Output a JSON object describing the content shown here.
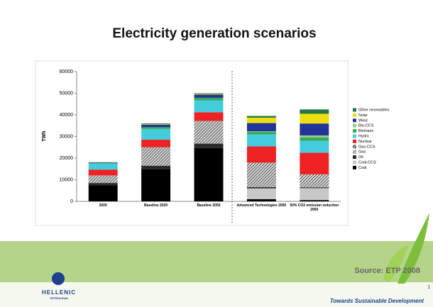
{
  "chart_data": {
    "type": "stacked_bar",
    "title": "Electricity generation scenarios",
    "y_label": "TWh",
    "categories": [
      "2005",
      "Baseline 2030",
      "Baseline 2050",
      "Advanced Technologies 2050",
      "50% CO2 emission reduction 2050"
    ],
    "series": [
      {
        "name": "Coal",
        "color": "#000000",
        "values": [
          7500,
          15000,
          24700,
          1000,
          600
        ]
      },
      {
        "name": "Coal-CCS",
        "color": "#c8c8c8",
        "values": [
          0,
          0,
          0,
          5000,
          5500
        ]
      },
      {
        "name": "Oil",
        "color": "#2a2a2a",
        "values": [
          1000,
          1500,
          2000,
          600,
          400
        ]
      },
      {
        "name": "Gas",
        "color": "#9a9a9a",
        "hatch": true,
        "values": [
          3500,
          8500,
          10500,
          9800,
          2500
        ]
      },
      {
        "name": "Gas-CCS",
        "color": "#333333",
        "hatch": true,
        "values": [
          0,
          0,
          0,
          1500,
          3500
        ]
      },
      {
        "name": "Nuclear",
        "color": "#ee2222",
        "values": [
          2700,
          3500,
          4000,
          7500,
          10000
        ]
      },
      {
        "name": "Hydro",
        "color": "#44ccdd",
        "values": [
          2800,
          5000,
          5500,
          5500,
          5500
        ]
      },
      {
        "name": "Biomass",
        "color": "#33aa55",
        "values": [
          300,
          800,
          1200,
          1200,
          1500
        ]
      },
      {
        "name": "Bio-CCS",
        "color": "#99cc88",
        "values": [
          0,
          0,
          0,
          300,
          1000
        ]
      },
      {
        "name": "Wind",
        "color": "#223399",
        "values": [
          200,
          1200,
          1500,
          3800,
          5500
        ]
      },
      {
        "name": "Solar",
        "color": "#eedd11",
        "values": [
          0,
          200,
          300,
          2500,
          4500
        ]
      },
      {
        "name": "Other renewables",
        "color": "#227744",
        "values": [
          100,
          300,
          300,
          800,
          2000
        ]
      }
    ],
    "ylim": [
      0,
      60000
    ],
    "yticks": [
      0,
      10000,
      20000,
      30000,
      40000,
      50000,
      60000
    ]
  },
  "source": "Source: ETP 2008",
  "logo": {
    "name": "HELLENIC",
    "sub": "PETROLEUM"
  },
  "slogan": "Towards Sustainable Development",
  "page_number": "1"
}
